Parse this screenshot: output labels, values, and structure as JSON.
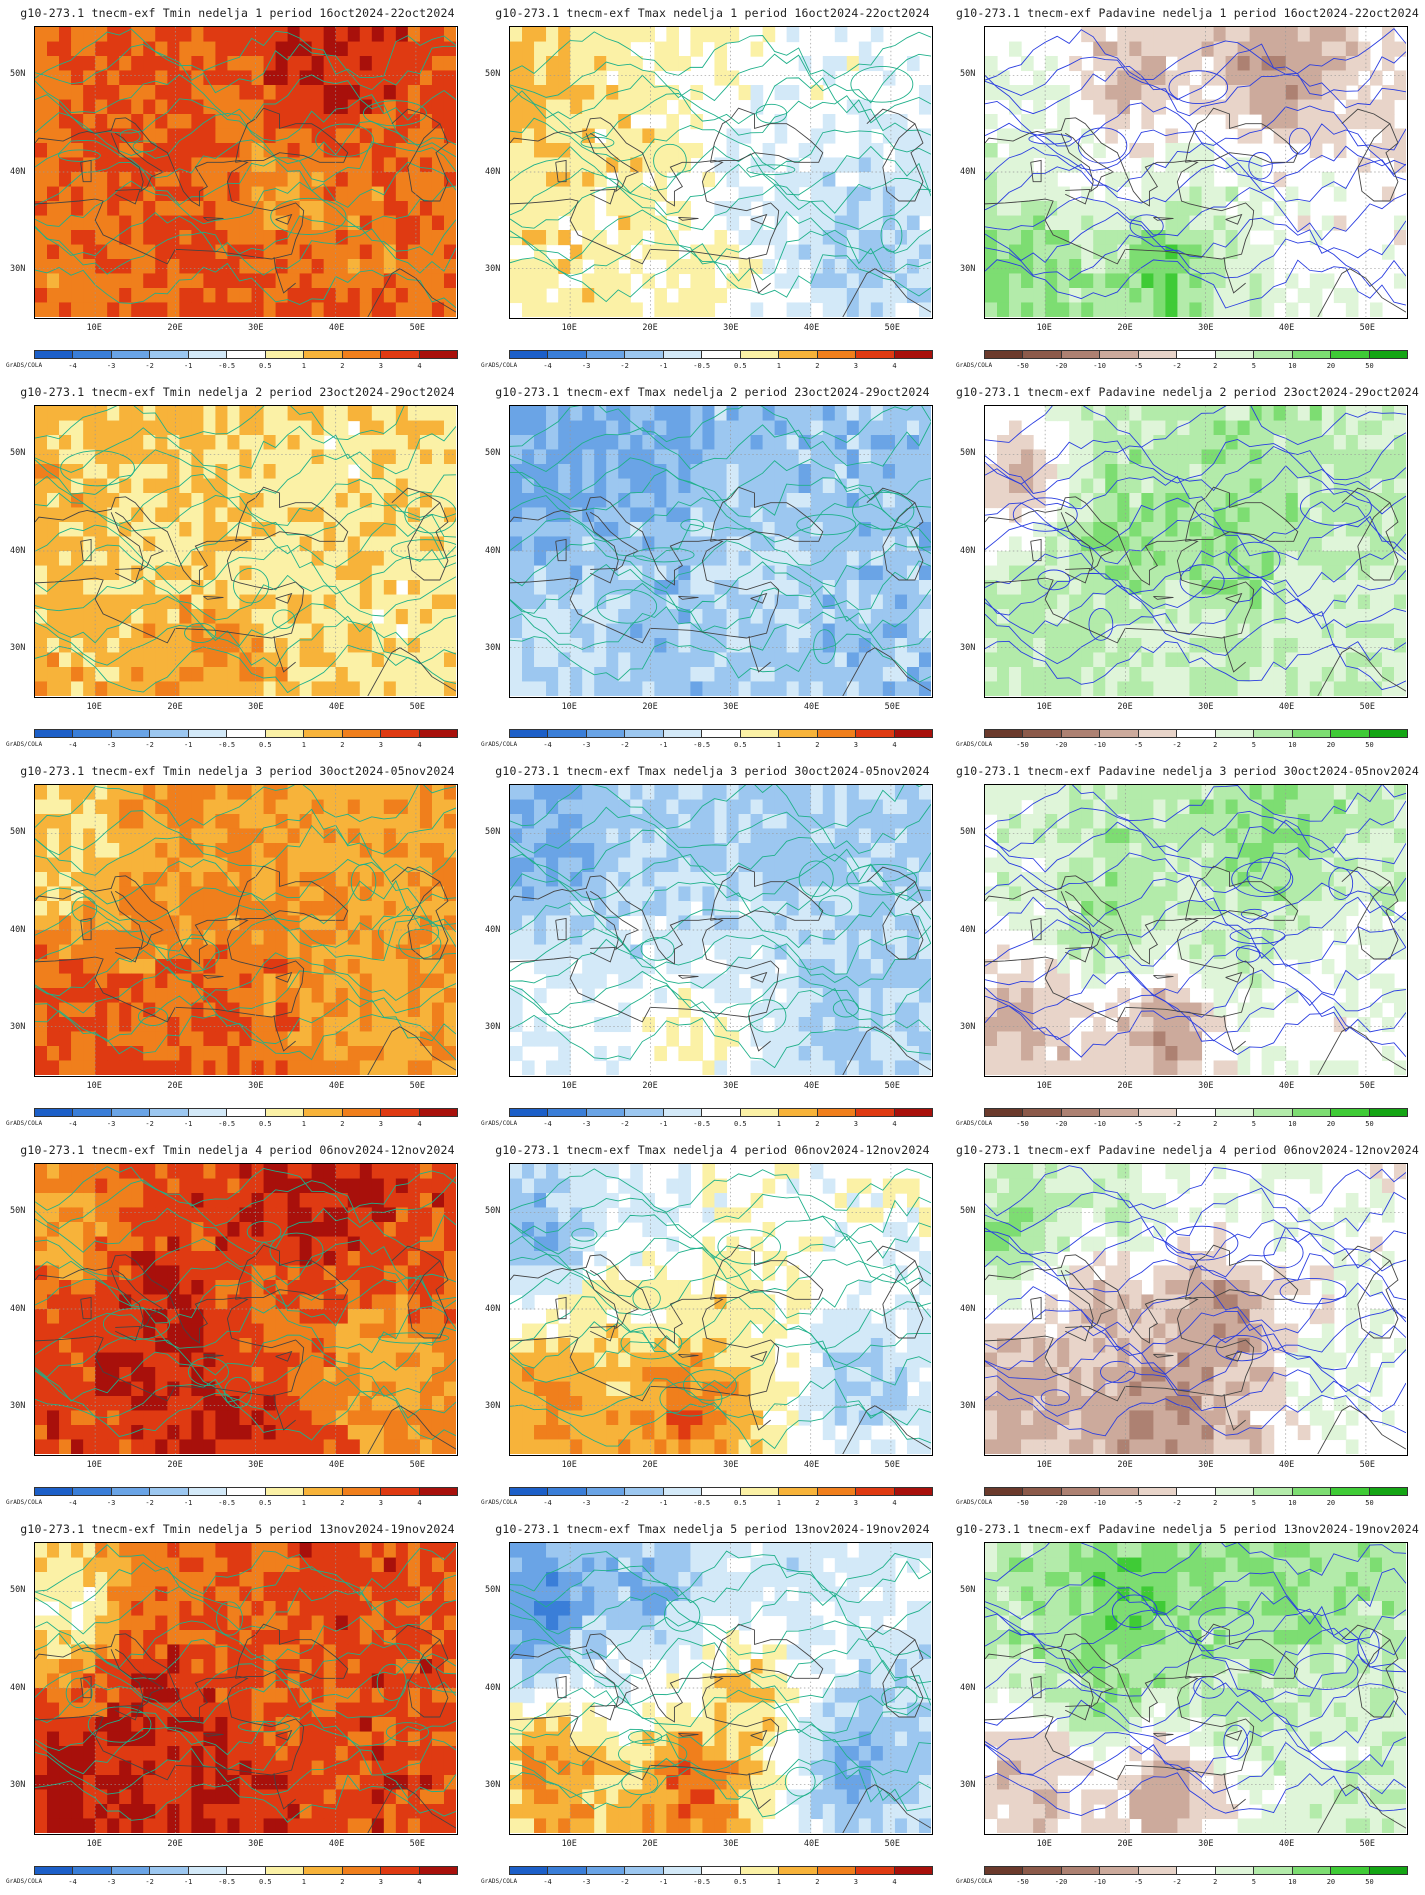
{
  "lat_labels": [
    "50N",
    "40N",
    "30N"
  ],
  "lon_labels": [
    "10E",
    "20E",
    "30E",
    "40E",
    "50E"
  ],
  "credit": "GrADS/COLA",
  "scales": {
    "temp": {
      "labels": [
        "-4",
        "-3",
        "-2",
        "-1",
        "-0.5",
        "0.5",
        "1",
        "2",
        "3",
        "4"
      ],
      "colors": [
        "#1c5fc8",
        "#3a7ed8",
        "#6aa4e6",
        "#9cc7f0",
        "#d3e9f8",
        "#ffffff",
        "#fbf1a6",
        "#f7b33a",
        "#f07f1c",
        "#df3a12",
        "#a8100b"
      ]
    },
    "precip": {
      "labels": [
        "-50",
        "-20",
        "-10",
        "-5",
        "-2",
        "2",
        "5",
        "10",
        "20",
        "50"
      ],
      "colors": [
        "#6b3a2c",
        "#8c5a4a",
        "#ad8172",
        "#ccaa9c",
        "#e8d4c9",
        "#ffffff",
        "#dff5d9",
        "#b3ebaa",
        "#7ddd72",
        "#3fcb36",
        "#14a514"
      ]
    }
  },
  "panels": [
    {
      "title": "g10-273.1 tnecm-exf Tmin nedelja 1 period 16oct2024-22oct2024",
      "scale": "temp",
      "field": "tmin",
      "anomaly_levels": [
        3,
        4,
        5,
        4,
        2,
        3,
        4,
        3
      ]
    },
    {
      "title": "g10-273.1 tnecm-exf Tmax nedelja 1 period 16oct2024-22oct2024",
      "scale": "temp",
      "field": "tmax",
      "anomaly_levels": [
        2,
        1,
        0,
        1,
        -1,
        1,
        1,
        -2
      ]
    },
    {
      "title": "g10-273.1 tnecm-exf Padavine nedelja 1 period 16oct2024-22oct2024",
      "scale": "precip",
      "field": "precip",
      "anomaly_levels": [
        1,
        -2,
        -3,
        0,
        1,
        3,
        4,
        0
      ]
    },
    {
      "title": "g10-273.1 tnecm-exf Tmin nedelja 2 period 23oct2024-29oct2024",
      "scale": "temp",
      "field": "tmin",
      "anomaly_levels": [
        2,
        2,
        1,
        1,
        1,
        2,
        3,
        1
      ]
    },
    {
      "title": "g10-273.1 tnecm-exf Tmax nedelja 2 period 23oct2024-29oct2024",
      "scale": "temp",
      "field": "tmax",
      "anomaly_levels": [
        -3,
        -3,
        -2,
        -2,
        -1,
        -1,
        -2,
        -2
      ]
    },
    {
      "title": "g10-273.1 tnecm-exf Padavine nedelja 2 period 23oct2024-29oct2024",
      "scale": "precip",
      "field": "precip",
      "anomaly_levels": [
        -2,
        2,
        2,
        3,
        3,
        2,
        1,
        1
      ]
    },
    {
      "title": "g10-273.1 tnecm-exf Tmin nedelja 3 period 30oct2024-05nov2024",
      "scale": "temp",
      "field": "tmin",
      "anomaly_levels": [
        1,
        2,
        2,
        3,
        3,
        4,
        4,
        2
      ]
    },
    {
      "title": "g10-273.1 tnecm-exf Tmax nedelja 3 period 30oct2024-05nov2024",
      "scale": "temp",
      "field": "tmax",
      "anomaly_levels": [
        -3,
        -2,
        -2,
        -1,
        -1,
        0,
        1,
        -2
      ]
    },
    {
      "title": "g10-273.1 tnecm-exf Padavine nedelja 3 period 30oct2024-05nov2024",
      "scale": "precip",
      "field": "precip",
      "anomaly_levels": [
        1,
        2,
        3,
        3,
        2,
        -2,
        -3,
        0
      ]
    },
    {
      "title": "g10-273.1 tnecm-exf Tmin nedelja 4 period 06nov2024-12nov2024",
      "scale": "temp",
      "field": "tmin",
      "anomaly_levels": [
        2,
        4,
        5,
        5,
        3,
        4,
        5,
        2
      ]
    },
    {
      "title": "g10-273.1 tnecm-exf Tmax nedelja 4 period 06nov2024-12nov2024",
      "scale": "temp",
      "field": "tmax",
      "anomaly_levels": [
        -3,
        -1,
        0,
        1,
        1,
        3,
        4,
        -2
      ]
    },
    {
      "title": "g10-273.1 tnecm-exf Padavine nedelja 4 period 06nov2024-12nov2024",
      "scale": "precip",
      "field": "precip",
      "anomaly_levels": [
        3,
        2,
        1,
        -2,
        -3,
        -2,
        -3,
        1
      ]
    },
    {
      "title": "g10-273.1 tnecm-exf Tmin nedelja 5 period 13nov2024-19nov2024",
      "scale": "temp",
      "field": "tmin",
      "anomaly_levels": [
        0,
        3,
        4,
        5,
        3,
        5,
        5,
        4
      ]
    },
    {
      "title": "g10-273.1 tnecm-exf Tmax nedelja 5 period 13nov2024-19nov2024",
      "scale": "temp",
      "field": "tmax",
      "anomaly_levels": [
        -4,
        -3,
        -1,
        0,
        2,
        3,
        4,
        -3
      ]
    },
    {
      "title": "g10-273.1 tnecm-exf Padavine nedelja 5 period 13nov2024-19nov2024",
      "scale": "precip",
      "field": "precip",
      "anomaly_levels": [
        2,
        4,
        3,
        3,
        2,
        -2,
        -3,
        1
      ]
    }
  ]
}
